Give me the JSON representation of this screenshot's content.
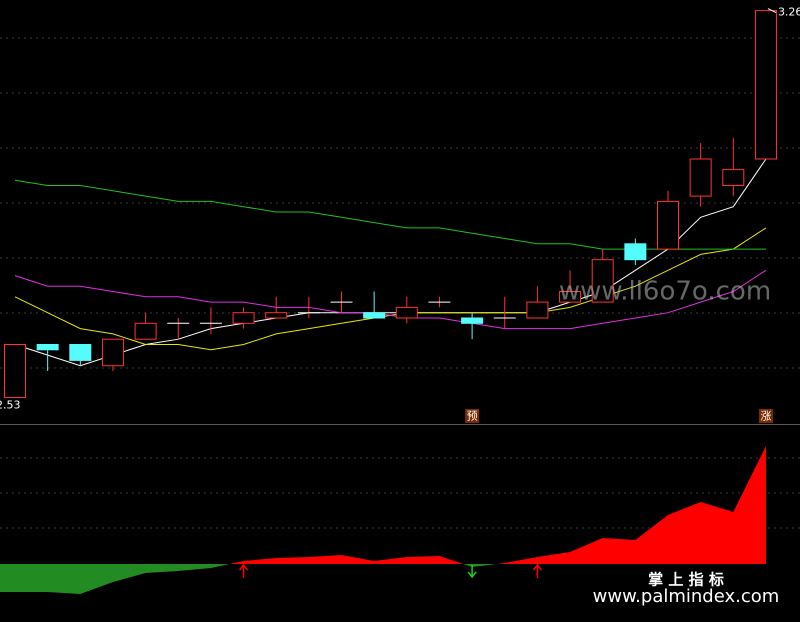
{
  "chart_data": [
    {
      "type": "candlestick",
      "open": [
        2.53,
        2.63,
        2.63,
        2.59,
        2.64,
        2.67,
        2.67,
        2.67,
        2.68,
        2.69,
        2.71,
        2.69,
        2.68,
        2.71,
        2.68,
        2.68,
        2.68,
        2.71,
        2.71,
        2.82,
        2.81,
        2.91,
        2.93,
        2.98
      ],
      "close": [
        2.63,
        2.62,
        2.6,
        2.64,
        2.67,
        2.67,
        2.67,
        2.69,
        2.69,
        2.69,
        2.71,
        2.68,
        2.7,
        2.71,
        2.67,
        2.68,
        2.71,
        2.73,
        2.79,
        2.79,
        2.9,
        2.98,
        2.96,
        3.26
      ],
      "high": [
        2.63,
        2.63,
        2.63,
        2.64,
        2.69,
        2.68,
        2.7,
        2.7,
        2.72,
        2.72,
        2.73,
        2.73,
        2.72,
        2.72,
        2.69,
        2.72,
        2.74,
        2.77,
        2.81,
        2.83,
        2.92,
        3.01,
        3.02,
        3.26
      ],
      "low": [
        2.53,
        2.58,
        2.59,
        2.58,
        2.64,
        2.64,
        2.65,
        2.66,
        2.68,
        2.68,
        2.69,
        2.68,
        2.67,
        2.7,
        2.64,
        2.66,
        2.68,
        2.71,
        2.71,
        2.78,
        2.81,
        2.89,
        2.91,
        2.98
      ],
      "up_color": "#ff3232",
      "down_color": "#54fcfc",
      "series": [
        {
          "color": "#ffffff",
          "values": [
            2.63,
            2.61,
            2.59,
            2.61,
            2.63,
            2.64,
            2.66,
            2.67,
            2.68,
            2.69,
            2.69,
            2.69,
            2.69,
            2.69,
            2.69,
            2.69,
            2.69,
            2.71,
            2.73,
            2.77,
            2.81,
            2.87,
            2.89,
            2.98
          ]
        },
        {
          "color": "#e8e800",
          "values": [
            2.72,
            2.69,
            2.66,
            2.65,
            2.63,
            2.63,
            2.62,
            2.63,
            2.65,
            2.66,
            2.67,
            2.68,
            2.69,
            2.69,
            2.69,
            2.69,
            2.69,
            2.7,
            2.72,
            2.74,
            2.77,
            2.8,
            2.81,
            2.85
          ]
        },
        {
          "color": "#e030e0",
          "values": [
            2.76,
            2.74,
            2.74,
            2.73,
            2.72,
            2.72,
            2.71,
            2.71,
            2.7,
            2.7,
            2.69,
            2.69,
            2.68,
            2.68,
            2.67,
            2.66,
            2.66,
            2.66,
            2.67,
            2.68,
            2.69,
            2.71,
            2.73,
            2.77
          ]
        },
        {
          "color": "#20c020",
          "values": [
            2.94,
            2.93,
            2.93,
            2.92,
            2.91,
            2.9,
            2.9,
            2.89,
            2.88,
            2.88,
            2.87,
            2.86,
            2.85,
            2.85,
            2.84,
            2.83,
            2.82,
            2.82,
            2.81,
            2.81,
            2.81,
            2.81,
            2.81,
            2.81
          ]
        }
      ],
      "high_label": 3.26,
      "low_label": 2.53,
      "signal_labels": [
        null,
        null,
        null,
        null,
        null,
        null,
        null,
        null,
        null,
        null,
        null,
        null,
        null,
        null,
        "预",
        null,
        null,
        null,
        null,
        null,
        null,
        null,
        null,
        "涨"
      ],
      "ylim": [
        2.48,
        3.28
      ]
    },
    {
      "type": "area",
      "values": [
        -28,
        -28,
        -30,
        -18,
        -9,
        -7,
        -4,
        3,
        6,
        7,
        9,
        3,
        7,
        8,
        -3,
        1,
        7,
        12,
        26,
        24,
        49,
        62,
        52,
        118
      ],
      "positive_color": "#ff0000",
      "negative_color": "#228b22",
      "arrows": [
        null,
        null,
        null,
        null,
        null,
        null,
        null,
        "up",
        null,
        null,
        null,
        null,
        null,
        null,
        "down",
        null,
        "up",
        null,
        null,
        null,
        null,
        null,
        null,
        null
      ],
      "ylim": [
        -50,
        125
      ]
    }
  ],
  "watermark": "www.ll6o7o.com",
  "brand": "掌 上 指 标",
  "brand_url": "www.palmindex.com"
}
